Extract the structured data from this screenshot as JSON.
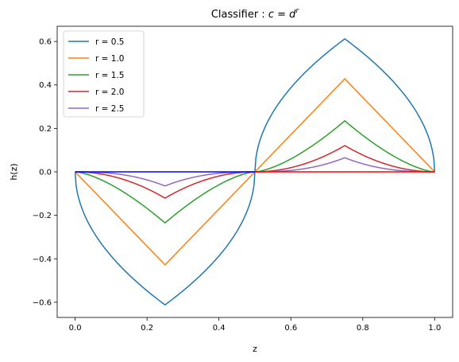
{
  "chart_data": {
    "type": "line",
    "title_prefix": "Classifier : ",
    "title_math": {
      "c": "c",
      "eq": " = ",
      "d": "d",
      "exp": "r"
    },
    "xlabel": "z",
    "ylabel": "h(z)",
    "xlim": [
      -0.05,
      1.05
    ],
    "ylim": [
      -0.67,
      0.67
    ],
    "xticks": [
      0.0,
      0.2,
      0.4,
      0.6,
      0.8,
      1.0
    ],
    "xtick_labels": [
      "0.0",
      "0.2",
      "0.4",
      "0.6",
      "0.8",
      "1.0"
    ],
    "yticks": [
      -0.6,
      -0.4,
      -0.2,
      0.0,
      0.2,
      0.4,
      0.6
    ],
    "ytick_labels": [
      "−0.6",
      "−0.4",
      "−0.2",
      "0.0",
      "0.2",
      "0.4",
      "0.6"
    ],
    "grid": false,
    "legend_position": "upper-left",
    "series": [
      {
        "name": "r = 0.5",
        "r": 0.5,
        "color": "#1f77b4",
        "peak": 0.612
      },
      {
        "name": "r = 1.0",
        "r": 1.0,
        "color": "#ff7f0e",
        "peak": 0.428
      },
      {
        "name": "r = 1.5",
        "r": 1.5,
        "color": "#2ca02c",
        "peak": 0.235
      },
      {
        "name": "r = 2.0",
        "r": 2.0,
        "color": "#d62728",
        "peak": 0.121
      },
      {
        "name": "r = 2.5",
        "r": 2.5,
        "color": "#9467bd",
        "peak": 0.065
      }
    ],
    "baselines": [
      {
        "x": [
          0.0,
          0.5
        ],
        "y": [
          0.0,
          0.0
        ],
        "color": "#0000ff"
      },
      {
        "x": [
          0.5,
          1.0
        ],
        "y": [
          0.0,
          0.0
        ],
        "color": "#ff0000"
      }
    ]
  }
}
